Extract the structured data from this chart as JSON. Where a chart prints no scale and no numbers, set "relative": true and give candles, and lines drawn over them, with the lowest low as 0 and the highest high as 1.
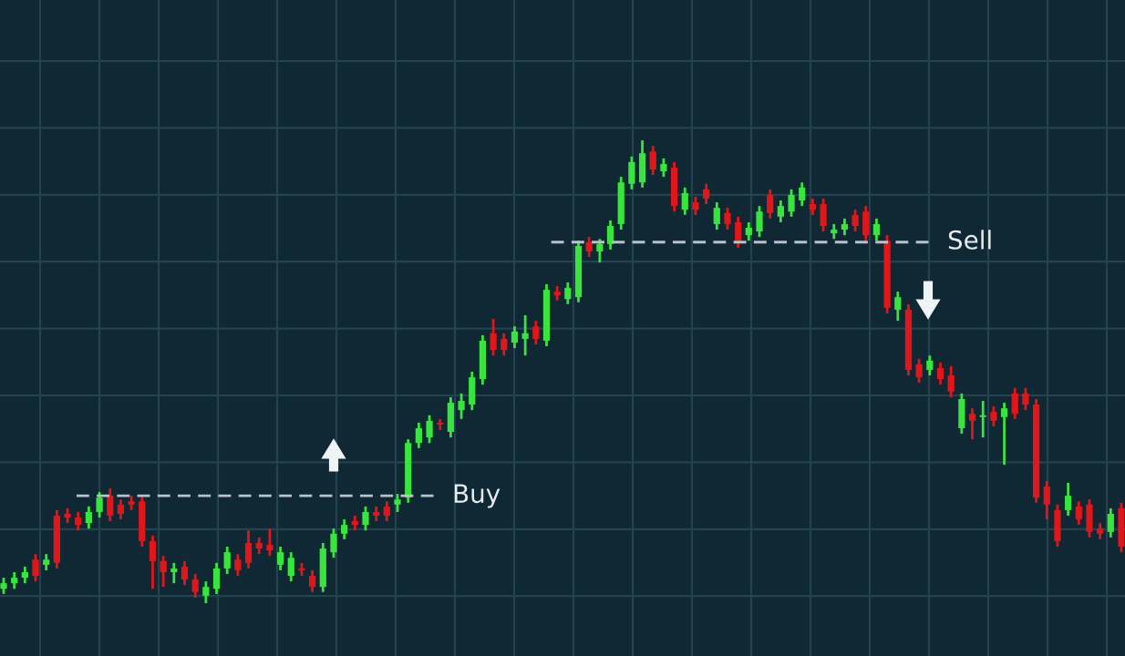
{
  "chart_data": {
    "type": "candlestick",
    "relative": true,
    "grid": true,
    "tick_labels": false,
    "categories": [
      null,
      null,
      null,
      null,
      null,
      null,
      null,
      null,
      null,
      null,
      null,
      null,
      null,
      null,
      null,
      null,
      null,
      null,
      null,
      null,
      null,
      null,
      null,
      null,
      null,
      null,
      null,
      null,
      null,
      null,
      null,
      null,
      null,
      null,
      null,
      null,
      null,
      null,
      null,
      null,
      null,
      null,
      null,
      null,
      null,
      null,
      null,
      null,
      null,
      null,
      null,
      null,
      null,
      null,
      null,
      null,
      null,
      null,
      null,
      null,
      null,
      null,
      null,
      null,
      null,
      null,
      null,
      null,
      null,
      null,
      null,
      null,
      null,
      null,
      null,
      null,
      null,
      null,
      null,
      null,
      null,
      null,
      null,
      null,
      null,
      null,
      null,
      null,
      null,
      null,
      null,
      null,
      null,
      null,
      null,
      null,
      null,
      null,
      null,
      null,
      null,
      null,
      null,
      null,
      null,
      null
    ],
    "ohlc": [
      [
        0.031,
        0.055,
        0.02,
        0.043
      ],
      [
        0.043,
        0.067,
        0.031,
        0.055
      ],
      [
        0.055,
        0.079,
        0.043,
        0.067
      ],
      [
        0.094,
        0.106,
        0.047,
        0.059
      ],
      [
        0.083,
        0.106,
        0.071,
        0.094
      ],
      [
        0.189,
        0.201,
        0.075,
        0.087
      ],
      [
        0.193,
        0.205,
        0.173,
        0.185
      ],
      [
        0.185,
        0.197,
        0.157,
        0.169
      ],
      [
        0.173,
        0.209,
        0.161,
        0.197
      ],
      [
        0.197,
        0.24,
        0.185,
        0.228
      ],
      [
        0.232,
        0.248,
        0.177,
        0.189
      ],
      [
        0.213,
        0.224,
        0.181,
        0.193
      ],
      [
        0.22,
        0.232,
        0.201,
        0.213
      ],
      [
        0.22,
        0.232,
        0.122,
        0.134
      ],
      [
        0.134,
        0.146,
        0.031,
        0.091
      ],
      [
        0.091,
        0.102,
        0.035,
        0.067
      ],
      [
        0.067,
        0.087,
        0.043,
        0.075
      ],
      [
        0.079,
        0.091,
        0.039,
        0.051
      ],
      [
        0.051,
        0.063,
        0.012,
        0.024
      ],
      [
        0.016,
        0.047,
        0.0,
        0.035
      ],
      [
        0.031,
        0.087,
        0.02,
        0.075
      ],
      [
        0.075,
        0.122,
        0.063,
        0.11
      ],
      [
        0.094,
        0.106,
        0.059,
        0.071
      ],
      [
        0.13,
        0.157,
        0.075,
        0.087
      ],
      [
        0.13,
        0.142,
        0.106,
        0.118
      ],
      [
        0.126,
        0.161,
        0.102,
        0.114
      ],
      [
        0.083,
        0.122,
        0.071,
        0.11
      ],
      [
        0.059,
        0.11,
        0.047,
        0.098
      ],
      [
        0.075,
        0.087,
        0.059,
        0.071
      ],
      [
        0.059,
        0.071,
        0.024,
        0.035
      ],
      [
        0.035,
        0.13,
        0.024,
        0.118
      ],
      [
        0.11,
        0.161,
        0.098,
        0.15
      ],
      [
        0.15,
        0.181,
        0.138,
        0.169
      ],
      [
        0.177,
        0.189,
        0.157,
        0.169
      ],
      [
        0.169,
        0.209,
        0.157,
        0.197
      ],
      [
        0.197,
        0.209,
        0.177,
        0.189
      ],
      [
        0.209,
        0.22,
        0.177,
        0.189
      ],
      [
        0.213,
        0.236,
        0.197,
        0.224
      ],
      [
        0.228,
        0.354,
        0.217,
        0.346
      ],
      [
        0.346,
        0.39,
        0.335,
        0.378
      ],
      [
        0.358,
        0.406,
        0.346,
        0.394
      ],
      [
        0.39,
        0.398,
        0.374,
        0.386
      ],
      [
        0.37,
        0.445,
        0.358,
        0.433
      ],
      [
        0.417,
        0.453,
        0.398,
        0.437
      ],
      [
        0.429,
        0.5,
        0.417,
        0.488
      ],
      [
        0.484,
        0.579,
        0.472,
        0.567
      ],
      [
        0.583,
        0.614,
        0.535,
        0.547
      ],
      [
        0.571,
        0.583,
        0.535,
        0.547
      ],
      [
        0.563,
        0.598,
        0.551,
        0.587
      ],
      [
        0.571,
        0.622,
        0.535,
        0.583
      ],
      [
        0.598,
        0.61,
        0.559,
        0.571
      ],
      [
        0.567,
        0.689,
        0.555,
        0.677
      ],
      [
        0.673,
        0.685,
        0.654,
        0.665
      ],
      [
        0.657,
        0.693,
        0.646,
        0.681
      ],
      [
        0.661,
        0.783,
        0.65,
        0.772
      ],
      [
        0.78,
        0.791,
        0.748,
        0.76
      ],
      [
        0.76,
        0.787,
        0.736,
        0.776
      ],
      [
        0.776,
        0.827,
        0.764,
        0.815
      ],
      [
        0.819,
        0.921,
        0.807,
        0.909
      ],
      [
        0.906,
        0.965,
        0.894,
        0.953
      ],
      [
        0.909,
        1.0,
        0.898,
        0.972
      ],
      [
        0.976,
        0.988,
        0.925,
        0.937
      ],
      [
        0.933,
        0.961,
        0.921,
        0.949
      ],
      [
        0.941,
        0.953,
        0.846,
        0.858
      ],
      [
        0.85,
        0.898,
        0.839,
        0.886
      ],
      [
        0.866,
        0.878,
        0.839,
        0.85
      ],
      [
        0.894,
        0.906,
        0.862,
        0.874
      ],
      [
        0.819,
        0.866,
        0.807,
        0.854
      ],
      [
        0.843,
        0.854,
        0.807,
        0.819
      ],
      [
        0.823,
        0.835,
        0.768,
        0.78
      ],
      [
        0.795,
        0.823,
        0.783,
        0.811
      ],
      [
        0.803,
        0.858,
        0.791,
        0.846
      ],
      [
        0.882,
        0.894,
        0.831,
        0.843
      ],
      [
        0.835,
        0.87,
        0.823,
        0.858
      ],
      [
        0.846,
        0.894,
        0.835,
        0.882
      ],
      [
        0.87,
        0.909,
        0.858,
        0.898
      ],
      [
        0.862,
        0.874,
        0.839,
        0.85
      ],
      [
        0.862,
        0.874,
        0.803,
        0.815
      ],
      [
        0.799,
        0.819,
        0.787,
        0.807
      ],
      [
        0.807,
        0.831,
        0.795,
        0.819
      ],
      [
        0.839,
        0.85,
        0.803,
        0.815
      ],
      [
        0.846,
        0.858,
        0.783,
        0.795
      ],
      [
        0.795,
        0.831,
        0.783,
        0.819
      ],
      [
        0.783,
        0.795,
        0.626,
        0.638
      ],
      [
        0.634,
        0.673,
        0.61,
        0.661
      ],
      [
        0.634,
        0.646,
        0.492,
        0.504
      ],
      [
        0.516,
        0.528,
        0.476,
        0.488
      ],
      [
        0.504,
        0.535,
        0.492,
        0.524
      ],
      [
        0.508,
        0.52,
        0.472,
        0.484
      ],
      [
        0.492,
        0.512,
        0.445,
        0.457
      ],
      [
        0.378,
        0.453,
        0.366,
        0.441
      ],
      [
        0.409,
        0.421,
        0.354,
        0.394
      ],
      [
        0.402,
        0.437,
        0.358,
        0.406
      ],
      [
        0.413,
        0.425,
        0.382,
        0.394
      ],
      [
        0.402,
        0.433,
        0.299,
        0.421
      ],
      [
        0.453,
        0.465,
        0.398,
        0.409
      ],
      [
        0.453,
        0.465,
        0.417,
        0.429
      ],
      [
        0.429,
        0.441,
        0.217,
        0.228
      ],
      [
        0.252,
        0.264,
        0.181,
        0.213
      ],
      [
        0.201,
        0.213,
        0.122,
        0.134
      ],
      [
        0.201,
        0.26,
        0.189,
        0.232
      ],
      [
        0.209,
        0.22,
        0.169,
        0.181
      ],
      [
        0.213,
        0.224,
        0.142,
        0.154
      ],
      [
        0.161,
        0.173,
        0.138,
        0.15
      ],
      [
        0.154,
        0.205,
        0.142,
        0.193
      ],
      [
        0.205,
        0.217,
        0.11,
        0.122
      ]
    ],
    "colors": [
      "#39e43f",
      "#39e43f",
      "#39e43f",
      "#e0161b",
      "#39e43f",
      "#e0161b",
      "#e0161b",
      "#e0161b",
      "#39e43f",
      "#39e43f",
      "#e0161b",
      "#e0161b",
      "#e0161b",
      "#e0161b",
      "#e0161b",
      "#e0161b",
      "#39e43f",
      "#e0161b",
      "#e0161b",
      "#39e43f",
      "#39e43f",
      "#39e43f",
      "#e0161b",
      "#e0161b",
      "#e0161b",
      "#e0161b",
      "#39e43f",
      "#39e43f",
      "#e0161b",
      "#e0161b",
      "#39e43f",
      "#39e43f",
      "#39e43f",
      "#e0161b",
      "#39e43f",
      "#e0161b",
      "#e0161b",
      "#39e43f",
      "#39e43f",
      "#39e43f",
      "#39e43f",
      "#e0161b",
      "#39e43f",
      "#39e43f",
      "#39e43f",
      "#39e43f",
      "#e0161b",
      "#e0161b",
      "#39e43f",
      "#39e43f",
      "#e0161b",
      "#39e43f",
      "#e0161b",
      "#39e43f",
      "#39e43f",
      "#e0161b",
      "#39e43f",
      "#39e43f",
      "#39e43f",
      "#39e43f",
      "#39e43f",
      "#e0161b",
      "#39e43f",
      "#e0161b",
      "#39e43f",
      "#e0161b",
      "#e0161b",
      "#39e43f",
      "#e0161b",
      "#e0161b",
      "#39e43f",
      "#39e43f",
      "#e0161b",
      "#39e43f",
      "#39e43f",
      "#39e43f",
      "#e0161b",
      "#e0161b",
      "#39e43f",
      "#39e43f",
      "#e0161b",
      "#e0161b",
      "#39e43f",
      "#e0161b",
      "#39e43f",
      "#e0161b",
      "#e0161b",
      "#39e43f",
      "#e0161b",
      "#e0161b",
      "#39e43f",
      "#e0161b",
      "#39e43f",
      "#e0161b",
      "#39e43f",
      "#e0161b",
      "#e0161b",
      "#e0161b",
      "#e0161b",
      "#e0161b",
      "#39e43f",
      "#e0161b",
      "#e0161b",
      "#e0161b",
      "#39e43f",
      "#e0161b"
    ],
    "ref_lines": [
      {
        "axis": "y",
        "value": 0.232,
        "label": "Buy",
        "color": "#b8c2c8",
        "line_style": "dashed"
      },
      {
        "axis": "y",
        "value": 0.78,
        "label": "Sell",
        "color": "#b8c2c8",
        "line_style": "dashed"
      }
    ]
  }
}
